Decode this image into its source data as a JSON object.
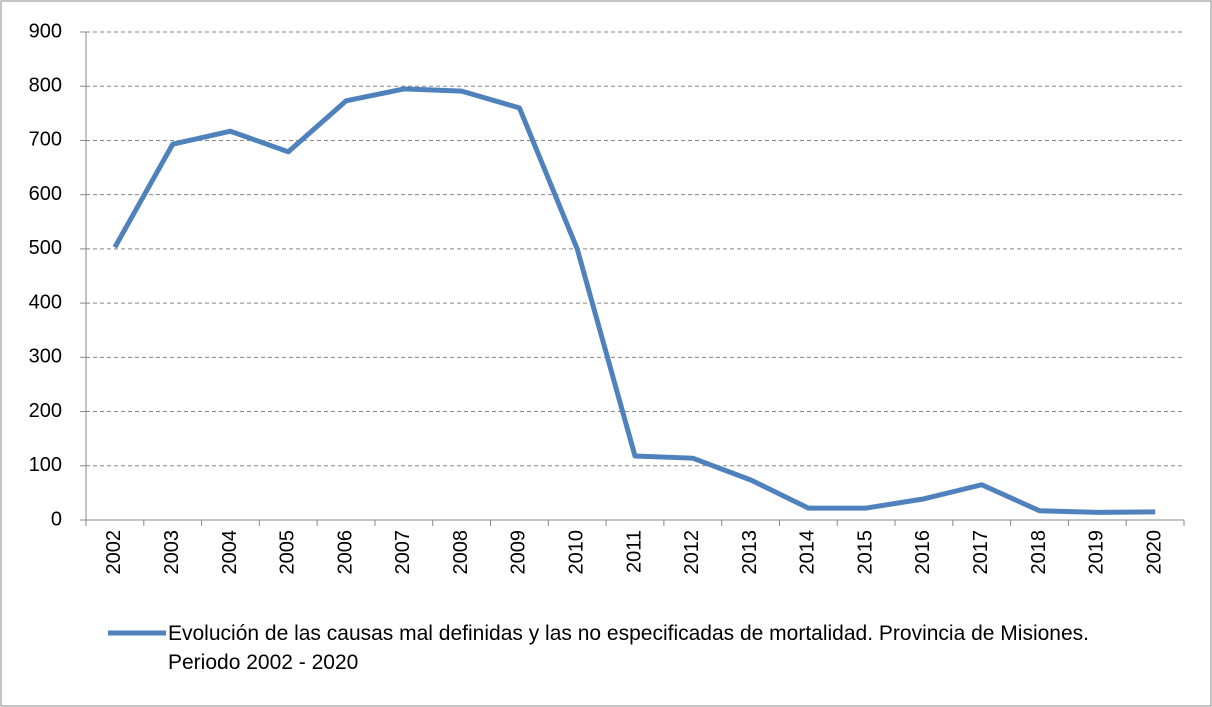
{
  "chart_data": {
    "type": "line",
    "categories": [
      "2002",
      "2003",
      "2004",
      "2005",
      "2006",
      "2007",
      "2008",
      "2009",
      "2010",
      "2011",
      "2012",
      "2013",
      "2014",
      "2015",
      "2016",
      "2017",
      "2018",
      "2019",
      "2020"
    ],
    "series": [
      {
        "name": "Evolución de las causas mal definidas y las no especificadas de mortalidad. Provincia de Misiones. Periodo 2002 - 2020",
        "color": "#4f81bd",
        "values": [
          503,
          693,
          717,
          679,
          773,
          795,
          791,
          760,
          500,
          118,
          114,
          74,
          22,
          22,
          39,
          65,
          17,
          14,
          15
        ]
      }
    ],
    "ylim": [
      0,
      900
    ],
    "yticks": [
      0,
      100,
      200,
      300,
      400,
      500,
      600,
      700,
      800,
      900
    ],
    "grid": true,
    "legend": "bottom"
  }
}
